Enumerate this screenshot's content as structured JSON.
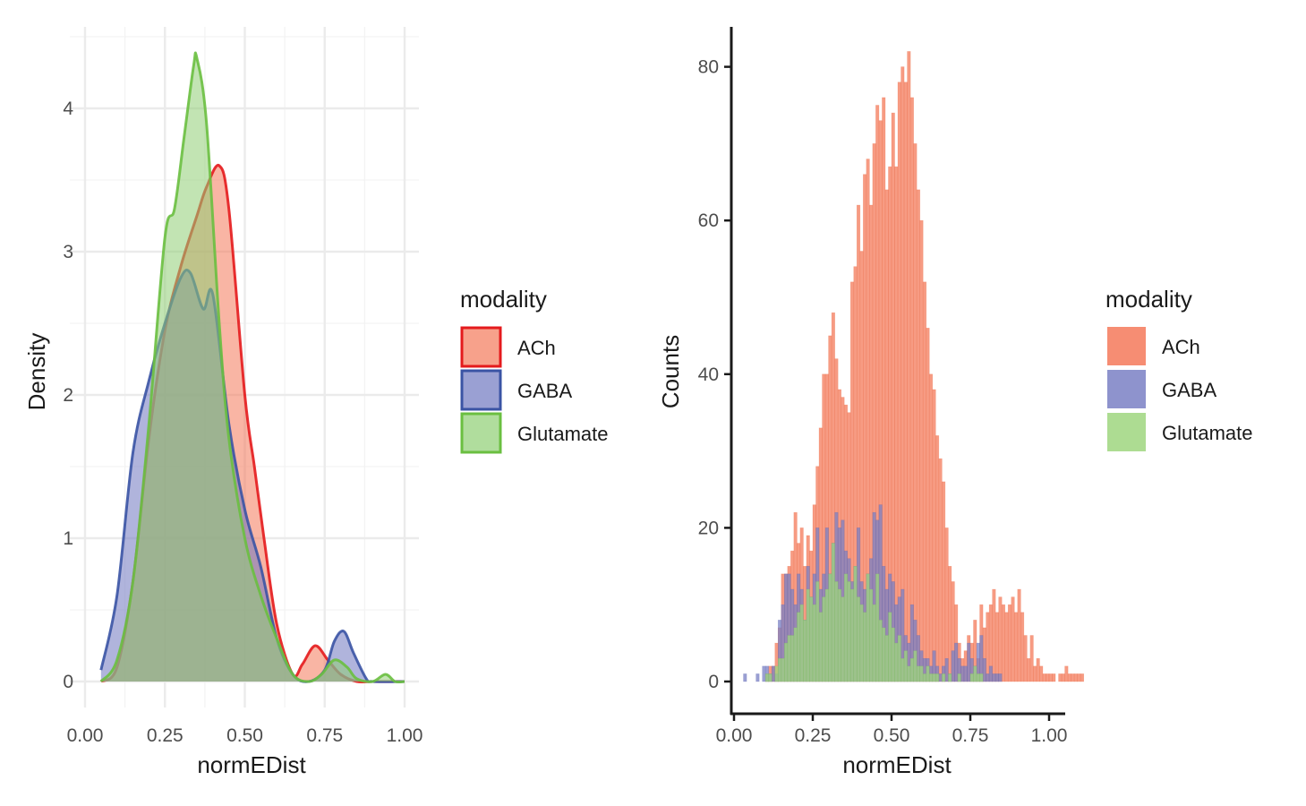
{
  "chart_data": [
    {
      "type": "density",
      "xlabel": "normEDist",
      "ylabel": "Density",
      "xlim": [
        0,
        1
      ],
      "ylim": [
        0,
        4.4
      ],
      "xticks": [
        "0.00",
        "0.25",
        "0.50",
        "0.75",
        "1.00"
      ],
      "yticks": [
        "0",
        "1",
        "2",
        "3",
        "4"
      ],
      "grid": true,
      "legend": {
        "title": "modality",
        "position": "right"
      },
      "series": [
        {
          "name": "ACh",
          "fill": "#f4795a",
          "stroke": "#e41a1c",
          "x": [
            0.05,
            0.1,
            0.15,
            0.2,
            0.25,
            0.3,
            0.35,
            0.38,
            0.42,
            0.45,
            0.5,
            0.53,
            0.56,
            0.6,
            0.65,
            0.68,
            0.72,
            0.76,
            0.8,
            0.85,
            0.9,
            0.95,
            1.0
          ],
          "y": [
            0,
            0.1,
            0.7,
            1.7,
            2.45,
            2.9,
            3.25,
            3.45,
            3.6,
            3.3,
            2.0,
            1.5,
            1.0,
            0.4,
            0.05,
            0.12,
            0.25,
            0.15,
            0.05,
            0,
            0,
            0,
            0
          ]
        },
        {
          "name": "GABA",
          "fill": "#6f77c0",
          "stroke": "#3a53a4",
          "x": [
            0.05,
            0.1,
            0.15,
            0.2,
            0.25,
            0.3,
            0.33,
            0.37,
            0.4,
            0.45,
            0.5,
            0.55,
            0.6,
            0.65,
            0.7,
            0.75,
            0.78,
            0.81,
            0.84,
            0.88,
            0.9,
            1.0
          ],
          "y": [
            0.08,
            0.6,
            1.6,
            2.1,
            2.5,
            2.82,
            2.85,
            2.6,
            2.7,
            1.8,
            1.2,
            0.8,
            0.3,
            0.05,
            0.0,
            0.08,
            0.28,
            0.35,
            0.2,
            0.02,
            0,
            0
          ]
        },
        {
          "name": "Glutamate",
          "fill": "#8fce74",
          "stroke": "#6abf40",
          "x": [
            0.05,
            0.1,
            0.15,
            0.2,
            0.25,
            0.28,
            0.31,
            0.34,
            0.35,
            0.38,
            0.42,
            0.45,
            0.5,
            0.55,
            0.6,
            0.65,
            0.7,
            0.74,
            0.78,
            0.82,
            0.85,
            0.9,
            0.94,
            0.97,
            1.0
          ],
          "y": [
            0,
            0.15,
            0.7,
            1.8,
            3.1,
            3.3,
            3.8,
            4.3,
            4.35,
            3.9,
            2.5,
            1.7,
            1.0,
            0.6,
            0.3,
            0.05,
            0,
            0.05,
            0.15,
            0.1,
            0.02,
            0,
            0.05,
            0,
            0
          ]
        }
      ]
    },
    {
      "type": "histogram",
      "xlabel": "normEDist",
      "ylabel": "Counts",
      "xlim": [
        0,
        1
      ],
      "ylim": [
        0,
        85
      ],
      "xticks": [
        "0.00",
        "0.25",
        "0.50",
        "0.75",
        "1.00"
      ],
      "yticks": [
        "0",
        "20",
        "40",
        "60",
        "80"
      ],
      "grid": false,
      "bin_width": 0.01,
      "legend": {
        "title": "modality",
        "position": "right"
      },
      "series": [
        {
          "name": "ACh",
          "fill": "#f4795a",
          "stroke": "#e8673f",
          "bin_start": 0.1,
          "counts": [
            1,
            2,
            2,
            5,
            7,
            14,
            14,
            15,
            17,
            22,
            18,
            20,
            15,
            19,
            17,
            23,
            28,
            33,
            40,
            40,
            45,
            48,
            42,
            38,
            37,
            36,
            35,
            52,
            54,
            62,
            56,
            66,
            68,
            62,
            70,
            75,
            73,
            76,
            64,
            67,
            74,
            67,
            78,
            80,
            78,
            82,
            76,
            70,
            64,
            60,
            52,
            46,
            40,
            38,
            32,
            29,
            26,
            20,
            15,
            13,
            10,
            5,
            3,
            4,
            6,
            5,
            8,
            3,
            10,
            7,
            9,
            10,
            12,
            9,
            11,
            10,
            9,
            10,
            11,
            9,
            12,
            9,
            6,
            3,
            6,
            2,
            3,
            2,
            1,
            1,
            1,
            1,
            0,
            1,
            1,
            2,
            1,
            1,
            1,
            1,
            1
          ],
          "note": ""
        },
        {
          "name": "GABA",
          "fill": "#7a80c4",
          "stroke": "#5a62b0",
          "bin_start": 0.03,
          "counts": [
            1,
            0,
            0,
            0,
            1,
            0,
            2,
            2,
            1,
            2,
            1,
            8,
            10,
            14,
            14,
            12,
            10,
            14,
            12,
            8,
            15,
            11,
            14,
            20,
            12,
            14,
            20,
            14,
            18,
            22,
            20,
            21,
            17,
            16,
            13,
            15,
            20,
            13,
            12,
            14,
            16,
            22,
            21,
            23,
            15,
            12,
            14,
            13,
            10,
            11,
            12,
            6,
            5,
            10,
            8,
            6,
            4,
            3,
            3,
            2,
            4,
            2,
            1,
            2,
            3,
            1,
            4,
            5,
            3,
            2,
            2,
            5,
            3,
            2,
            5,
            6,
            3,
            1,
            2,
            1,
            1,
            1,
            0,
            0
          ]
        },
        {
          "name": "Glutamate",
          "fill": "#9fd67f",
          "stroke": "#7fc15a",
          "bin_start": 0.1,
          "counts": [
            1,
            1,
            0,
            2,
            3,
            3,
            5,
            6,
            6,
            7,
            9,
            10,
            8,
            12,
            11,
            10,
            13,
            9,
            11,
            12,
            14,
            18,
            13,
            12,
            11,
            14,
            13,
            12,
            15,
            11,
            10,
            9,
            14,
            12,
            10,
            14,
            8,
            7,
            6,
            9,
            7,
            5,
            6,
            3,
            4,
            2,
            3,
            4,
            2,
            2,
            1,
            2,
            1,
            1,
            1,
            0,
            1,
            0,
            1,
            0,
            0,
            1,
            0,
            0,
            0,
            1,
            2,
            1,
            1
          ]
        }
      ]
    }
  ]
}
